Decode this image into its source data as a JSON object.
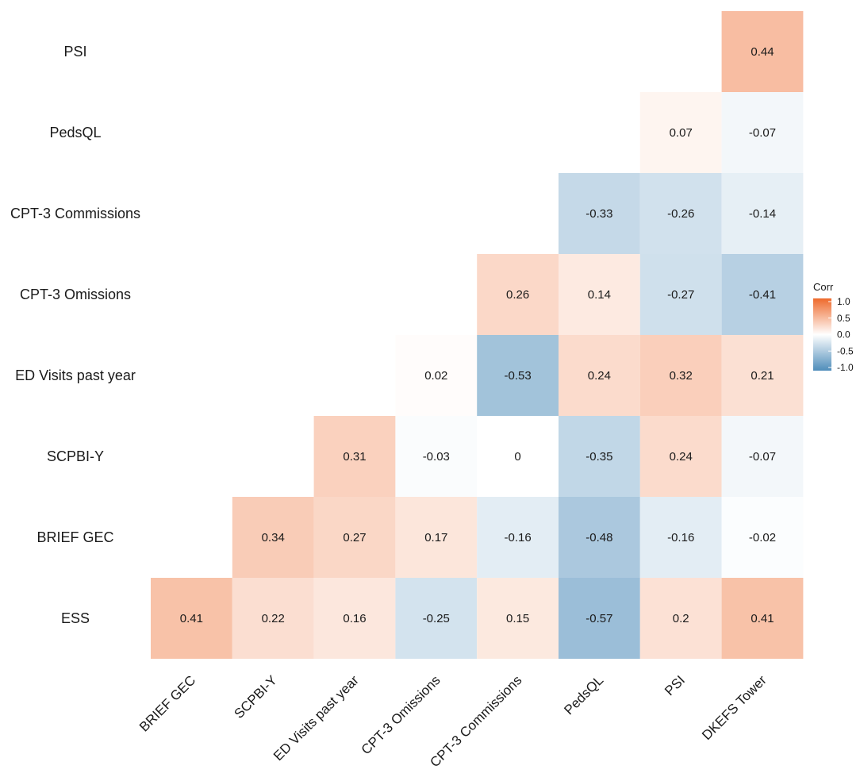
{
  "chart_data": {
    "type": "heatmap",
    "title": "",
    "rows": [
      "PSI",
      "PedsQL",
      "CPT-3 Commissions",
      "CPT-3 Omissions",
      "ED Visits past year",
      "SCPBI-Y",
      "BRIEF GEC",
      "ESS"
    ],
    "columns": [
      "BRIEF GEC",
      "SCPBI-Y",
      "ED Visits past year",
      "CPT-3 Omissions",
      "CPT-3 Commissions",
      "PedsQL",
      "PSI",
      "DKEFS Tower"
    ],
    "values": [
      [
        null,
        null,
        null,
        null,
        null,
        null,
        null,
        0.44
      ],
      [
        null,
        null,
        null,
        null,
        null,
        null,
        0.07,
        -0.07
      ],
      [
        null,
        null,
        null,
        null,
        null,
        -0.33,
        -0.26,
        -0.14
      ],
      [
        null,
        null,
        null,
        null,
        0.26,
        0.14,
        -0.27,
        -0.41
      ],
      [
        null,
        null,
        null,
        0.02,
        -0.53,
        0.24,
        0.32,
        0.21
      ],
      [
        null,
        null,
        0.31,
        -0.03,
        0,
        -0.35,
        0.24,
        -0.07
      ],
      [
        null,
        0.34,
        0.27,
        0.17,
        -0.16,
        -0.48,
        -0.16,
        -0.02
      ],
      [
        0.41,
        0.22,
        0.16,
        -0.25,
        0.15,
        -0.57,
        0.2,
        0.41
      ]
    ],
    "legend": {
      "title": "Corr",
      "ticks": [
        "1.0",
        "0.5",
        "0.0",
        "-0.5",
        "-1.0"
      ],
      "range": [
        -1,
        1
      ],
      "colors": {
        "low": "#4f8dba",
        "mid": "#ffffff",
        "high": "#ee6a2c"
      }
    }
  }
}
